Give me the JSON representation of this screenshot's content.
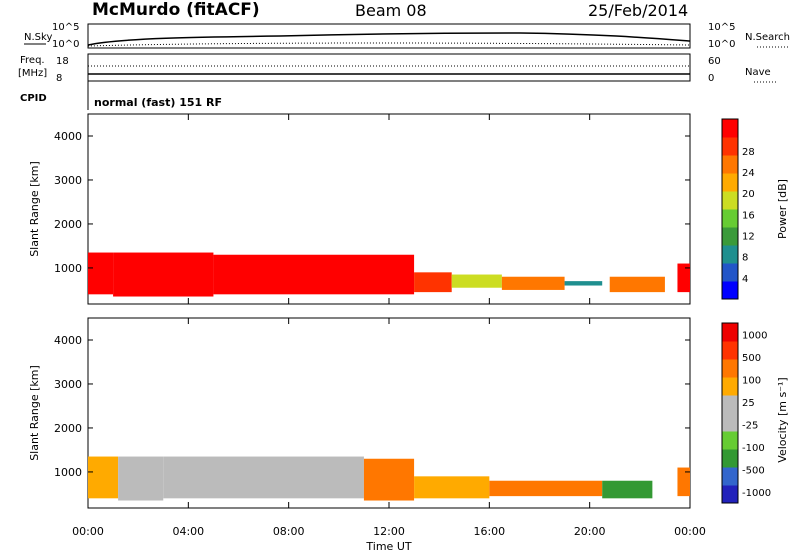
{
  "header": {
    "station": "McMurdo (fitACF)",
    "beam": "Beam 08",
    "date": "25/Feb/2014"
  },
  "top_panels": {
    "nsky_label": "N.Sky",
    "nsky_ticks": [
      "10^5",
      "10^0"
    ],
    "nsearch_label": "N.Search",
    "nsearch_ticks": [
      "10^5",
      "10^0"
    ],
    "freq_label": "Freq.",
    "freq_unit": "[MHz]",
    "freq_ticks": [
      "18",
      "8"
    ],
    "nave_label": "Nave",
    "nave_ticks": [
      "60",
      "0"
    ],
    "cpid_label": "CPID",
    "cpid_value": "normal (fast) 151 RF"
  },
  "colors": {
    "power": [
      "#0000ff",
      "#2255c8",
      "#1f8f8f",
      "#3a9a3a",
      "#66cc33",
      "#ccdd22",
      "#ffaa00",
      "#ff7700",
      "#ff3300",
      "#ff0000"
    ],
    "velocity": [
      "#2222bb",
      "#3366cc",
      "#339933",
      "#66cc33",
      "#bbbbbb",
      "#bbbbbb",
      "#ffaa00",
      "#ff7700",
      "#ff3300",
      "#ee0000"
    ]
  },
  "chart_data": [
    {
      "type": "heatmap",
      "name": "power",
      "ylabel": "Slant Range [km]",
      "ylim": [
        180,
        4500
      ],
      "y_ticks": [
        "1000",
        "2000",
        "3000",
        "4000"
      ],
      "xlim": [
        0,
        24
      ],
      "colorbar_label": "Power [dB]",
      "colorbar_ticks": [
        "4",
        "8",
        "12",
        "16",
        "20",
        "24",
        "28"
      ],
      "features": [
        {
          "x0": 0.0,
          "x1": 1.0,
          "y0": 400,
          "y1": 1350,
          "level": 9
        },
        {
          "x0": 1.0,
          "x1": 5.0,
          "y0": 350,
          "y1": 1350,
          "level": 9
        },
        {
          "x0": 5.0,
          "x1": 13.0,
          "y0": 400,
          "y1": 1300,
          "level": 9
        },
        {
          "x0": 13.0,
          "x1": 14.5,
          "y0": 450,
          "y1": 900,
          "level": 8
        },
        {
          "x0": 14.5,
          "x1": 16.5,
          "y0": 550,
          "y1": 850,
          "level": 5
        },
        {
          "x0": 16.5,
          "x1": 19.0,
          "y0": 500,
          "y1": 800,
          "level": 7
        },
        {
          "x0": 19.0,
          "x1": 20.5,
          "y0": 600,
          "y1": 700,
          "level": 2
        },
        {
          "x0": 20.8,
          "x1": 23.0,
          "y0": 450,
          "y1": 800,
          "level": 7
        },
        {
          "x0": 23.5,
          "x1": 24.0,
          "y0": 450,
          "y1": 1100,
          "level": 9
        }
      ]
    },
    {
      "type": "heatmap",
      "name": "velocity",
      "xlabel": "Time UT",
      "ylabel": "Slant Range [km]",
      "ylim": [
        180,
        4500
      ],
      "y_ticks": [
        "1000",
        "2000",
        "3000",
        "4000"
      ],
      "xlim": [
        0,
        24
      ],
      "x_ticks": [
        "00:00",
        "04:00",
        "08:00",
        "12:00",
        "16:00",
        "20:00",
        "00:00"
      ],
      "colorbar_label": "Velocity [m s⁻¹]",
      "colorbar_ticks": [
        "1000",
        "500",
        "100",
        "25",
        "-25",
        "-100",
        "-500",
        "-1000"
      ],
      "features": [
        {
          "x0": 0.0,
          "x1": 1.2,
          "y0": 400,
          "y1": 1350,
          "level": 6
        },
        {
          "x0": 1.2,
          "x1": 3.0,
          "y0": 350,
          "y1": 1350,
          "level": 5
        },
        {
          "x0": 3.0,
          "x1": 6.0,
          "y0": 400,
          "y1": 1350,
          "level": 4
        },
        {
          "x0": 6.0,
          "x1": 11.0,
          "y0": 400,
          "y1": 1350,
          "level": 4
        },
        {
          "x0": 11.0,
          "x1": 13.0,
          "y0": 350,
          "y1": 1300,
          "level": 7
        },
        {
          "x0": 13.0,
          "x1": 16.0,
          "y0": 400,
          "y1": 900,
          "level": 6
        },
        {
          "x0": 16.0,
          "x1": 20.5,
          "y0": 450,
          "y1": 800,
          "level": 7
        },
        {
          "x0": 20.5,
          "x1": 22.5,
          "y0": 400,
          "y1": 800,
          "level": 2
        },
        {
          "x0": 23.5,
          "x1": 24.0,
          "y0": 450,
          "y1": 1100,
          "level": 7
        }
      ]
    }
  ]
}
